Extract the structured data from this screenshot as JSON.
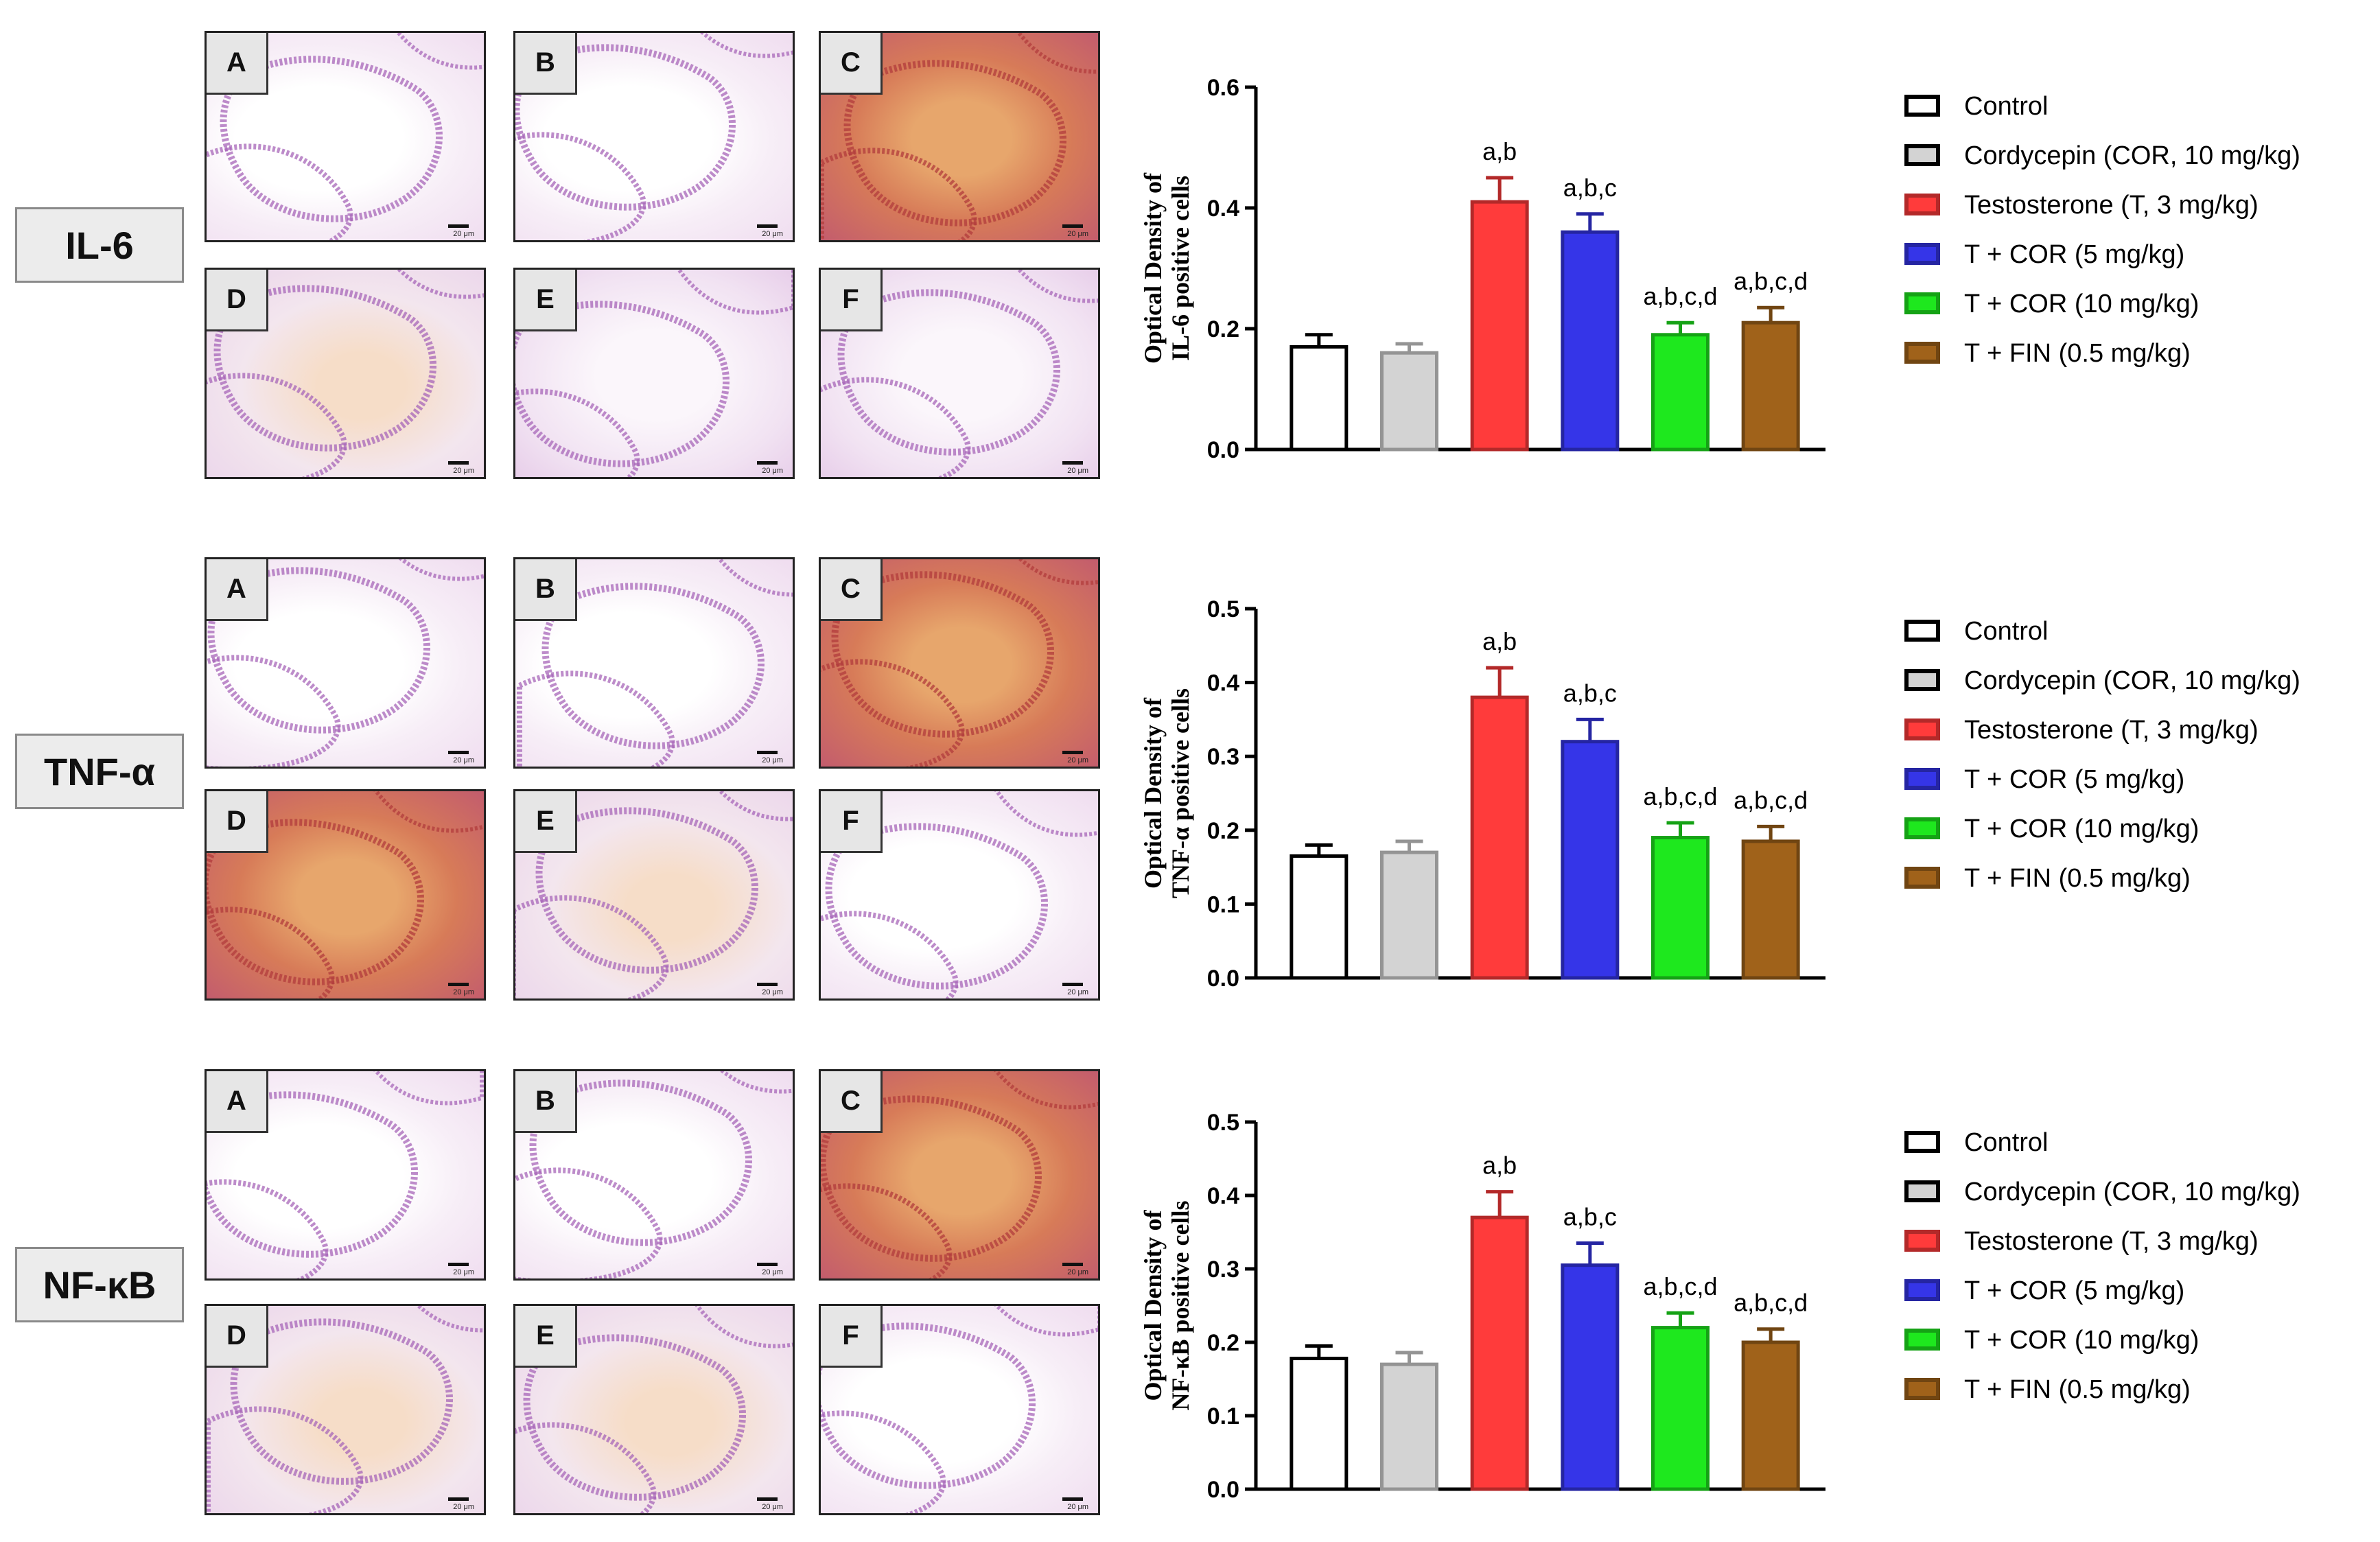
{
  "rows": [
    {
      "marker": "IL-6",
      "panels": [
        {
          "letter": "A",
          "scale": "20 μm",
          "stain": "none"
        },
        {
          "letter": "B",
          "scale": "20 μm",
          "stain": "none"
        },
        {
          "letter": "C",
          "scale": "20 μm",
          "stain": "strong"
        },
        {
          "letter": "D",
          "scale": "20 μm",
          "stain": "mild"
        },
        {
          "letter": "E",
          "scale": "20 μm",
          "stain": "light"
        },
        {
          "letter": "F",
          "scale": "20 μm",
          "stain": "light"
        }
      ]
    },
    {
      "marker": "TNF-α",
      "panels": [
        {
          "letter": "A",
          "scale": "20 μm",
          "stain": "none"
        },
        {
          "letter": "B",
          "scale": "20 μm",
          "stain": "none"
        },
        {
          "letter": "C",
          "scale": "20 μm",
          "stain": "strong"
        },
        {
          "letter": "D",
          "scale": "20 μm",
          "stain": "strong"
        },
        {
          "letter": "E",
          "scale": "20 μm",
          "stain": "mild"
        },
        {
          "letter": "F",
          "scale": "20 μm",
          "stain": "none"
        }
      ]
    },
    {
      "marker": "NF-κB",
      "panels": [
        {
          "letter": "A",
          "scale": "20 μm",
          "stain": "none"
        },
        {
          "letter": "B",
          "scale": "20 μm",
          "stain": "none"
        },
        {
          "letter": "C",
          "scale": "20 μm",
          "stain": "strong"
        },
        {
          "letter": "D",
          "scale": "20 μm",
          "stain": "mild"
        },
        {
          "letter": "E",
          "scale": "20 μm",
          "stain": "mild"
        },
        {
          "letter": "F",
          "scale": "20 μm",
          "stain": "none"
        }
      ]
    }
  ],
  "chart_data": [
    {
      "type": "bar",
      "ylabel": [
        "Optical Density of",
        "IL-6 positive cells"
      ],
      "ylim": [
        0,
        0.6
      ],
      "yticks": [
        "0.0",
        "0.2",
        "0.4",
        "0.6"
      ],
      "categories": [
        "Control",
        "Cordycepin (COR, 10 mg/kg)",
        "Testosterone (T, 3 mg/kg)",
        "T + COR (5 mg/kg)",
        "T + COR (10 mg/kg)",
        "T + FIN (0.5 mg/kg)"
      ],
      "values": [
        0.17,
        0.16,
        0.41,
        0.36,
        0.19,
        0.21
      ],
      "errors": [
        0.02,
        0.015,
        0.04,
        0.03,
        0.02,
        0.025
      ],
      "annotations": [
        "",
        "",
        "a,b",
        "a,b,c",
        "a,b,c,d",
        "a,b,c,d"
      ]
    },
    {
      "type": "bar",
      "ylabel": [
        "Optical Density of",
        "TNF-α positive cells"
      ],
      "ylim": [
        0,
        0.5
      ],
      "yticks": [
        "0.0",
        "0.1",
        "0.2",
        "0.3",
        "0.4",
        "0.5"
      ],
      "categories": [
        "Control",
        "Cordycepin (COR, 10 mg/kg)",
        "Testosterone (T, 3 mg/kg)",
        "T + COR (5 mg/kg)",
        "T + COR (10 mg/kg)",
        "T + FIN (0.5 mg/kg)"
      ],
      "values": [
        0.165,
        0.17,
        0.38,
        0.32,
        0.19,
        0.185
      ],
      "errors": [
        0.015,
        0.015,
        0.04,
        0.03,
        0.02,
        0.02
      ],
      "annotations": [
        "",
        "",
        "a,b",
        "a,b,c",
        "a,b,c,d",
        "a,b,c,d"
      ]
    },
    {
      "type": "bar",
      "ylabel": [
        "Optical Density of",
        "NF-κB positive cells"
      ],
      "ylim": [
        0,
        0.5
      ],
      "yticks": [
        "0.0",
        "0.1",
        "0.2",
        "0.3",
        "0.4",
        "0.5"
      ],
      "categories": [
        "Control",
        "Cordycepin (COR, 10 mg/kg)",
        "Testosterone (T, 3 mg/kg)",
        "T + COR (5 mg/kg)",
        "T + COR (10 mg/kg)",
        "T + FIN (0.5 mg/kg)"
      ],
      "values": [
        0.178,
        0.17,
        0.37,
        0.305,
        0.22,
        0.2
      ],
      "errors": [
        0.017,
        0.016,
        0.035,
        0.03,
        0.02,
        0.018
      ],
      "annotations": [
        "",
        "",
        "a,b",
        "a,b,c",
        "a,b,c,d",
        "a,b,c,d"
      ]
    }
  ],
  "legend": [
    {
      "label": "Control",
      "fill": "#ffffff"
    },
    {
      "label": "Cordycepin (COR, 10 mg/kg)",
      "fill": "#d3d3d3"
    },
    {
      "label": "Testosterone (T, 3 mg/kg)",
      "fill": "#ff3b3b"
    },
    {
      "label": "T + COR (5 mg/kg)",
      "fill": "#3535e8"
    },
    {
      "label": "T + COR (10 mg/kg)",
      "fill": "#1ee81e"
    },
    {
      "label": "T + FIN (0.5 mg/kg)",
      "fill": "#a0621a"
    }
  ]
}
